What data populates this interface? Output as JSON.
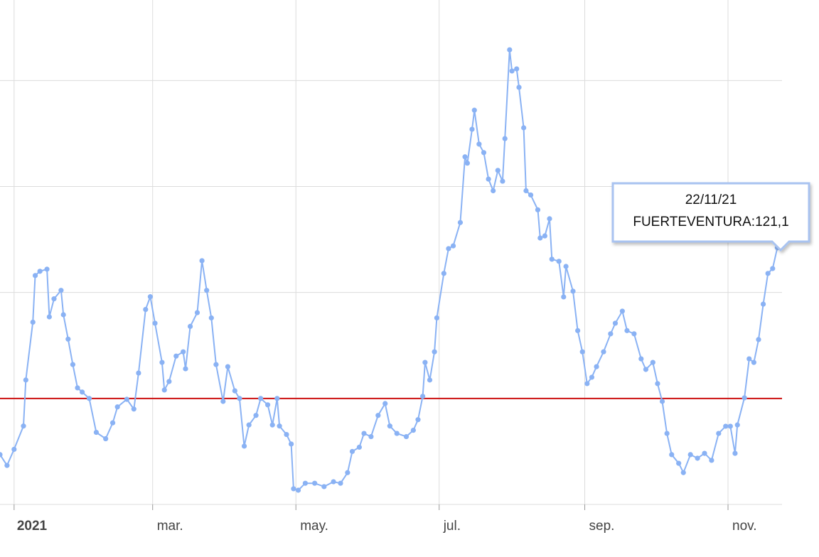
{
  "chart_data": {
    "type": "line",
    "x": [
      "2020-12-26",
      "2020-12-29",
      "2021-01-01",
      "2021-01-05",
      "2021-01-06",
      "2021-01-09",
      "2021-01-10",
      "2021-01-12",
      "2021-01-15",
      "2021-01-16",
      "2021-01-18",
      "2021-01-21",
      "2021-01-22",
      "2021-01-24",
      "2021-01-26",
      "2021-01-28",
      "2021-01-30",
      "2021-02-02",
      "2021-02-05",
      "2021-02-09",
      "2021-02-12",
      "2021-02-14",
      "2021-02-18",
      "2021-02-21",
      "2021-02-23",
      "2021-02-26",
      "2021-02-28",
      "2021-03-02",
      "2021-03-05",
      "2021-03-06",
      "2021-03-08",
      "2021-03-11",
      "2021-03-14",
      "2021-03-15",
      "2021-03-17",
      "2021-03-20",
      "2021-03-22",
      "2021-03-24",
      "2021-03-26",
      "2021-03-28",
      "2021-03-31",
      "2021-04-02",
      "2021-04-05",
      "2021-04-07",
      "2021-04-09",
      "2021-04-11",
      "2021-04-14",
      "2021-04-16",
      "2021-04-19",
      "2021-04-21",
      "2021-04-23",
      "2021-04-24",
      "2021-04-27",
      "2021-04-29",
      "2021-04-30",
      "2021-05-02",
      "2021-05-05",
      "2021-05-09",
      "2021-05-13",
      "2021-05-17",
      "2021-05-20",
      "2021-05-23",
      "2021-05-25",
      "2021-05-28",
      "2021-05-30",
      "2021-06-02",
      "2021-06-05",
      "2021-06-08",
      "2021-06-10",
      "2021-06-13",
      "2021-06-17",
      "2021-06-20",
      "2021-06-22",
      "2021-06-24",
      "2021-06-25",
      "2021-06-27",
      "2021-06-29",
      "2021-06-30",
      "2021-07-03",
      "2021-07-05",
      "2021-07-07",
      "2021-07-10",
      "2021-07-12",
      "2021-07-13",
      "2021-07-15",
      "2021-07-16",
      "2021-07-18",
      "2021-07-20",
      "2021-07-22",
      "2021-07-24",
      "2021-07-26",
      "2021-07-28",
      "2021-07-29",
      "2021-07-31",
      "2021-08-01",
      "2021-08-03",
      "2021-08-04",
      "2021-08-06",
      "2021-08-07",
      "2021-08-09",
      "2021-08-12",
      "2021-08-13",
      "2021-08-15",
      "2021-08-17",
      "2021-08-18",
      "2021-08-21",
      "2021-08-23",
      "2021-08-24",
      "2021-08-27",
      "2021-08-29",
      "2021-08-31",
      "2021-09-02",
      "2021-09-04",
      "2021-09-06",
      "2021-09-09",
      "2021-09-12",
      "2021-09-14",
      "2021-09-17",
      "2021-09-19",
      "2021-09-22",
      "2021-09-25",
      "2021-09-27",
      "2021-09-30",
      "2021-10-02",
      "2021-10-04",
      "2021-10-06",
      "2021-10-08",
      "2021-10-11",
      "2021-10-13",
      "2021-10-16",
      "2021-10-19",
      "2021-10-22",
      "2021-10-25",
      "2021-10-28",
      "2021-10-31",
      "2021-11-02",
      "2021-11-04",
      "2021-11-05",
      "2021-11-08",
      "2021-11-10",
      "2021-11-12",
      "2021-11-14",
      "2021-11-16",
      "2021-11-18",
      "2021-11-20",
      "2021-11-22"
    ],
    "series": [
      {
        "name": "FUERTEVENTURA",
        "color": "#8ab2f4",
        "values": [
          23.5,
          18.4,
          26,
          37,
          58.7,
          86,
          108,
          110,
          111,
          88.5,
          97,
          101,
          89.5,
          78,
          66,
          55,
          53,
          50,
          34,
          31,
          38.5,
          46,
          49.6,
          45,
          62,
          92,
          98,
          85.5,
          67,
          54,
          58,
          70,
          72,
          64,
          84,
          90.5,
          115,
          101,
          88,
          66,
          48.6,
          65,
          53.6,
          50,
          27.5,
          37.5,
          42,
          50,
          47,
          37.5,
          50,
          37,
          33,
          28.5,
          7.4,
          6.7,
          10,
          10,
          8.4,
          10.7,
          10,
          15,
          25,
          27,
          33.5,
          32,
          42,
          47.6,
          37,
          33.5,
          32,
          35,
          40,
          51,
          67,
          58.7,
          72,
          88,
          109,
          120.7,
          122,
          133,
          164,
          161,
          177,
          186,
          170,
          166,
          153.5,
          148,
          157.6,
          152.5,
          172.6,
          214.5,
          204.5,
          205.5,
          196.8,
          177.7,
          148,
          146,
          139,
          125.7,
          126.7,
          134.8,
          115.7,
          114.7,
          97.9,
          112.3,
          100.6,
          82,
          72,
          57,
          60,
          65,
          72,
          80.5,
          85.5,
          91.2,
          82,
          80.5,
          68.7,
          63.7,
          67,
          57,
          48.6,
          33.5,
          23.5,
          19.4,
          15,
          23.5,
          21.8,
          24.1,
          20.8,
          33.5,
          36.9,
          36.9,
          24.1,
          37.5,
          50.3,
          68.7,
          67,
          77.8,
          94.5,
          109,
          111.3,
          121.1
        ]
      }
    ],
    "xlim": [
      "2020-12-26",
      "2021-11-24"
    ],
    "xticks": [
      {
        "value": "2021-01-01",
        "label": "2021"
      },
      {
        "value": "2021-03-01",
        "label": "mar."
      },
      {
        "value": "2021-05-01",
        "label": "may."
      },
      {
        "value": "2021-07-01",
        "label": "jul."
      },
      {
        "value": "2021-09-01",
        "label": "sep."
      },
      {
        "value": "2021-11-01",
        "label": "nov."
      }
    ],
    "ylim": [
      0,
      238
    ],
    "yticks": [
      0,
      50,
      100,
      150,
      200
    ],
    "threshold": {
      "value": 50,
      "color": "#cc1111"
    },
    "grid": true,
    "tooltip": {
      "date": "22/11/21",
      "label": "FUERTEVENTURA:121,1"
    }
  }
}
